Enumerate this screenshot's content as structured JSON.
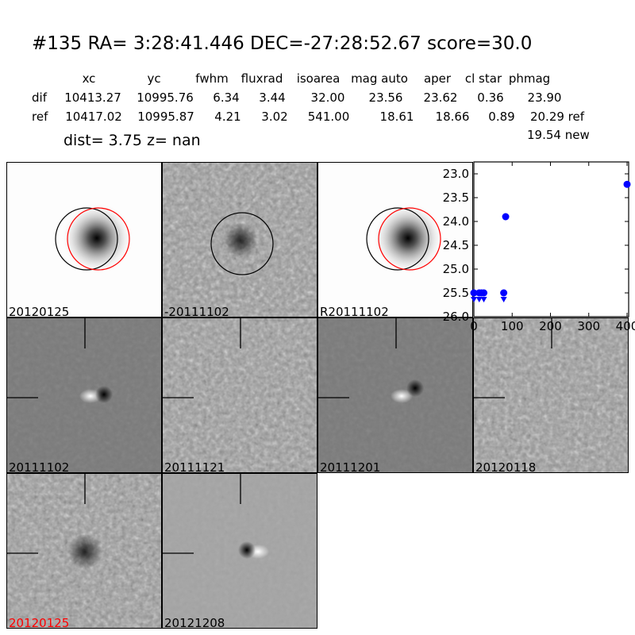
{
  "title": "#135   RA= 3:28:41.446 DEC=-27:28:52.67      score=30.0",
  "table": {
    "headers": [
      "xc",
      "yc",
      "fwhm",
      "fluxrad",
      "isoarea",
      "mag auto",
      "aper",
      "cl star",
      "phmag"
    ],
    "rows": [
      {
        "label": "dif",
        "values": [
          "10413.27",
          "10995.76",
          "6.34",
          "3.44",
          "32.00",
          "23.56",
          "23.62",
          "0.36",
          "23.90"
        ]
      },
      {
        "label": "ref",
        "values": [
          "10417.02",
          "10995.87",
          "4.21",
          "3.02",
          "541.00",
          "18.61",
          "18.66",
          "0.89",
          "20.29 ref"
        ]
      }
    ],
    "extra": "19.54 new"
  },
  "dist_line": "dist=  3.75      z=   nan",
  "stamps": [
    {
      "label": "20120125",
      "kind": "star",
      "circles": true,
      "label_color": "#000000"
    },
    {
      "label": "-20111102",
      "kind": "noisystar",
      "circles": "black",
      "label_color": "#000000"
    },
    {
      "label": "R20111102",
      "kind": "star",
      "circles": true,
      "label_color": "#000000"
    },
    {
      "label": "20111102",
      "kind": "dipole",
      "label_color": "#000000"
    },
    {
      "label": "20111121",
      "kind": "noise",
      "label_color": "#000000"
    },
    {
      "label": "20111201",
      "kind": "dipole2",
      "label_color": "#000000"
    },
    {
      "label": "20120118",
      "kind": "noise",
      "label_color": "#000000"
    },
    {
      "label": "20120125",
      "kind": "noisystar",
      "label_color": "#ff0000"
    },
    {
      "label": "20121208",
      "kind": "dipole3",
      "label_color": "#000000"
    }
  ],
  "chart_data": {
    "type": "scatter",
    "xlim": [
      0,
      400
    ],
    "ylim": [
      26.0,
      22.75
    ],
    "y_inverted": true,
    "xticks": [
      "0",
      "100",
      "200",
      "300",
      "400"
    ],
    "yticks": [
      "23.0",
      "23.5",
      "24.0",
      "24.5",
      "25.0",
      "25.5",
      "26.0"
    ],
    "color": "#0000ff",
    "detections": [
      {
        "x": 0,
        "y": 25.5
      },
      {
        "x": 14,
        "y": 25.5
      },
      {
        "x": 20,
        "y": 25.5
      },
      {
        "x": 26,
        "y": 25.5
      },
      {
        "x": 78,
        "y": 25.5
      },
      {
        "x": 83,
        "y": 23.9
      },
      {
        "x": 400,
        "y": 23.22
      }
    ],
    "upper_limits": [
      {
        "x": 0,
        "y": 25.65
      },
      {
        "x": 14,
        "y": 25.65
      },
      {
        "x": 26,
        "y": 25.65
      },
      {
        "x": 78,
        "y": 25.65
      }
    ]
  }
}
